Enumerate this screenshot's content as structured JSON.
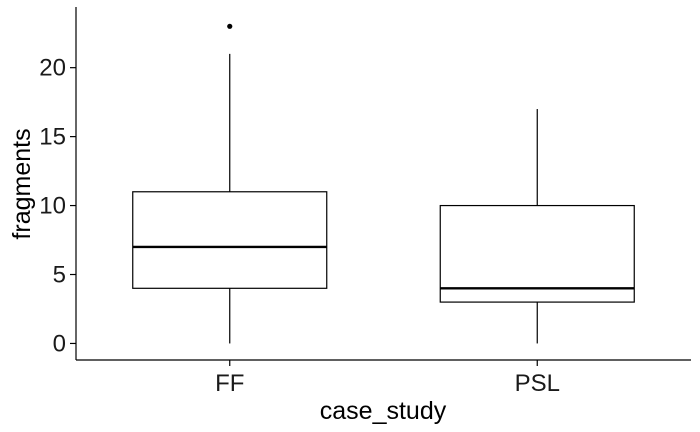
{
  "chart_data": {
    "type": "boxplot",
    "title": "",
    "xlabel": "case_study",
    "ylabel": "fragments",
    "ylim": [
      -1.2,
      24.4
    ],
    "yticks": [
      "0",
      "5",
      "10",
      "15",
      "20"
    ],
    "grid": false,
    "categories": [
      "FF",
      "PSL"
    ],
    "boxes": [
      {
        "category": "FF",
        "min": 0,
        "q1": 4,
        "median": 7,
        "q3": 11,
        "max": 21,
        "outliers": [
          23
        ]
      },
      {
        "category": "PSL",
        "min": 0,
        "q1": 3,
        "median": 4,
        "q3": 10,
        "max": 17,
        "outliers": []
      }
    ]
  }
}
